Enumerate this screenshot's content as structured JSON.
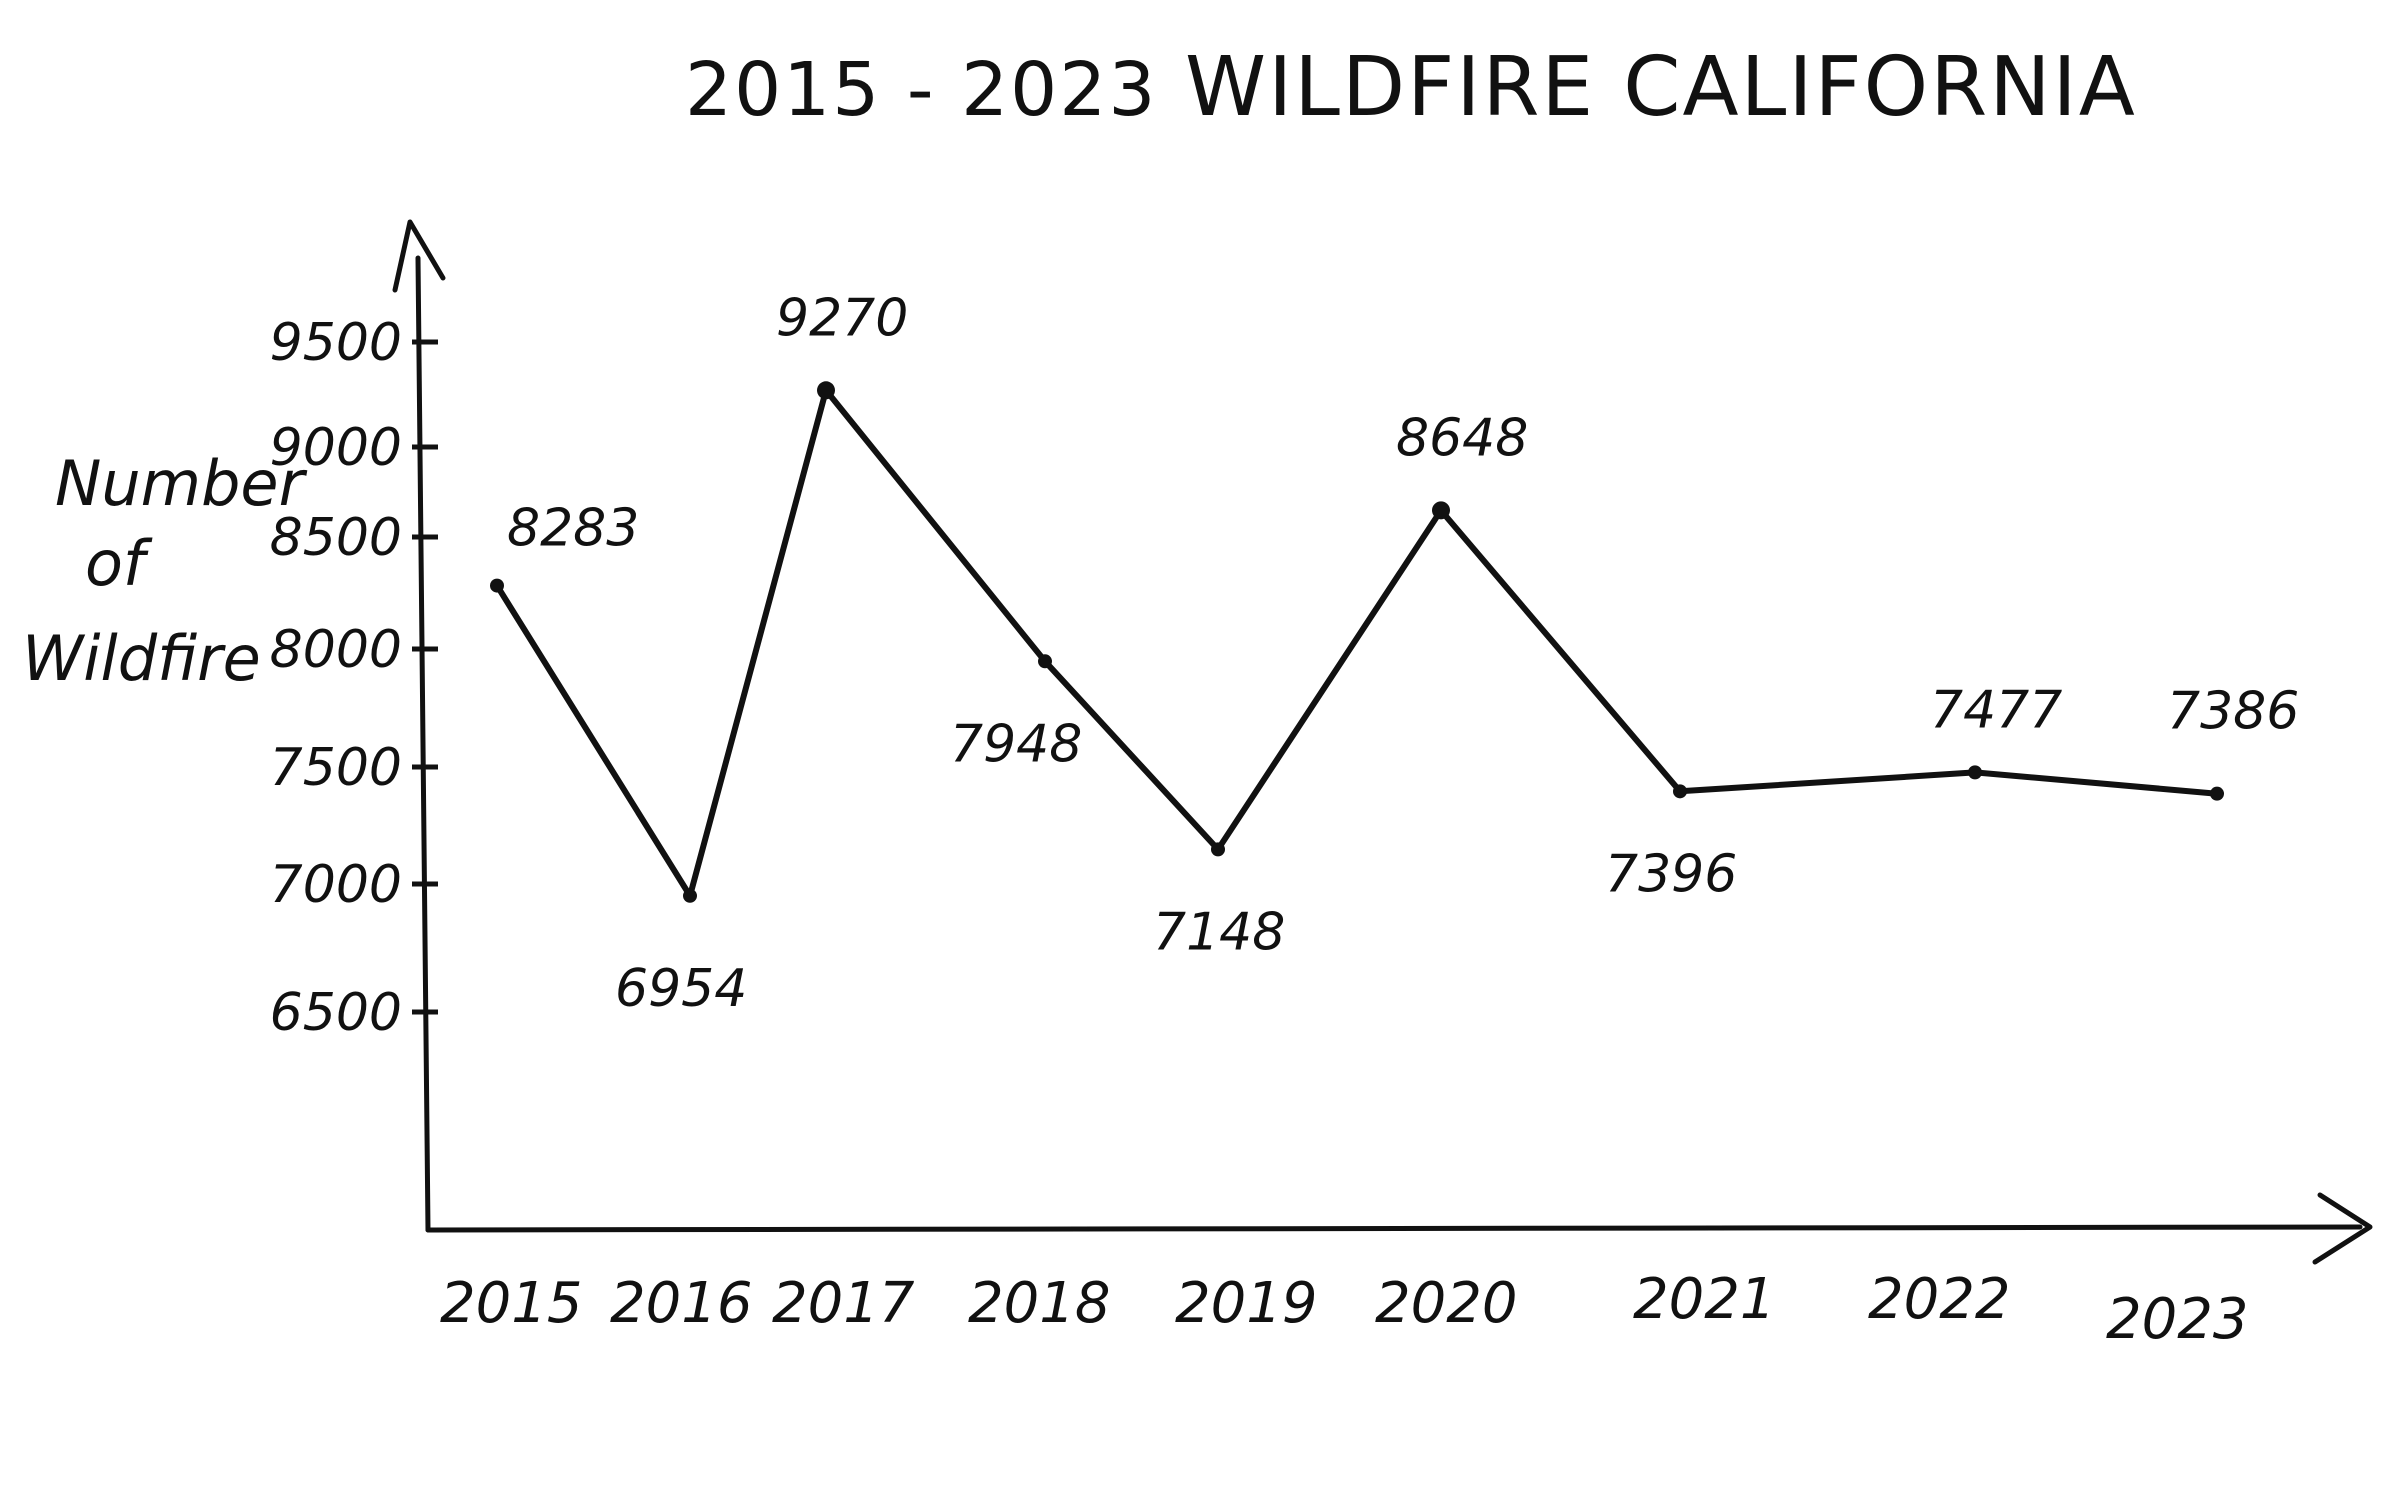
{
  "chart_data": {
    "type": "line",
    "title": "2015 - 2023",
    "subtitle": "WILDFIRE CALIFORNIA",
    "xlabel": "",
    "ylabel": [
      "Number",
      "of",
      "Wildfire"
    ],
    "categories": [
      "2015",
      "2016",
      "2017",
      "2018",
      "2019",
      "2020",
      "2021",
      "2022",
      "2023"
    ],
    "series": [
      {
        "values": [
          8283,
          6954,
          9270,
          7948,
          7148,
          8648,
          7396,
          7477,
          7386
        ],
        "labels": [
          "8283",
          "6954",
          "9270",
          "7948",
          "7148",
          "8648",
          "7396",
          "7477",
          "7386"
        ]
      }
    ],
    "yticks": [
      "9500",
      "9000",
      "8500",
      "8000",
      "7500",
      "7000",
      "6500"
    ],
    "grid": false,
    "legend": "none",
    "line_color": "#111111"
  }
}
